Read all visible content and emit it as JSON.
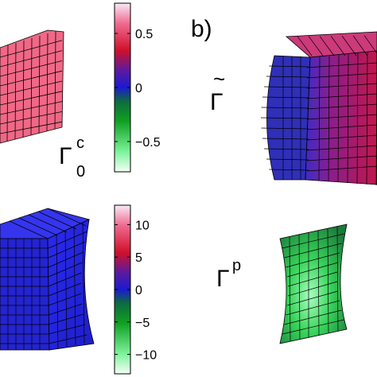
{
  "panel_b": {
    "label": "b)"
  },
  "symbols": {
    "gamma0c": {
      "main": "Γ",
      "sub": "0",
      "sup": "c"
    },
    "gamma_tilde": {
      "tilde": "~",
      "main": "Γ"
    },
    "gammap": {
      "main": "Γ",
      "sup": "p"
    }
  },
  "colorbar_top": {
    "ticks": [
      {
        "value": 0.5,
        "label": "0.5"
      },
      {
        "value": 0,
        "label": "0"
      },
      {
        "value": -0.5,
        "label": "−0.5"
      }
    ],
    "range": [
      -0.78,
      0.78
    ]
  },
  "colorbar_bottom": {
    "ticks": [
      {
        "value": 10,
        "label": "10"
      },
      {
        "value": 5,
        "label": "5"
      },
      {
        "value": 0,
        "label": "0"
      },
      {
        "value": -5,
        "label": "−5"
      },
      {
        "value": -10,
        "label": "−10"
      }
    ],
    "range": [
      -13,
      13
    ]
  },
  "colormap": {
    "stops": [
      "#f4fff4",
      "#39d96a",
      "#0e8a16",
      "#1a1ad0",
      "#c81030",
      "#f6e6f6"
    ]
  },
  "shapes": {
    "top_left_color": "#f2607e",
    "top_right_color": "#b01868",
    "bottom_left_color": "#2626ea",
    "bottom_right_color": "#36c34a"
  }
}
